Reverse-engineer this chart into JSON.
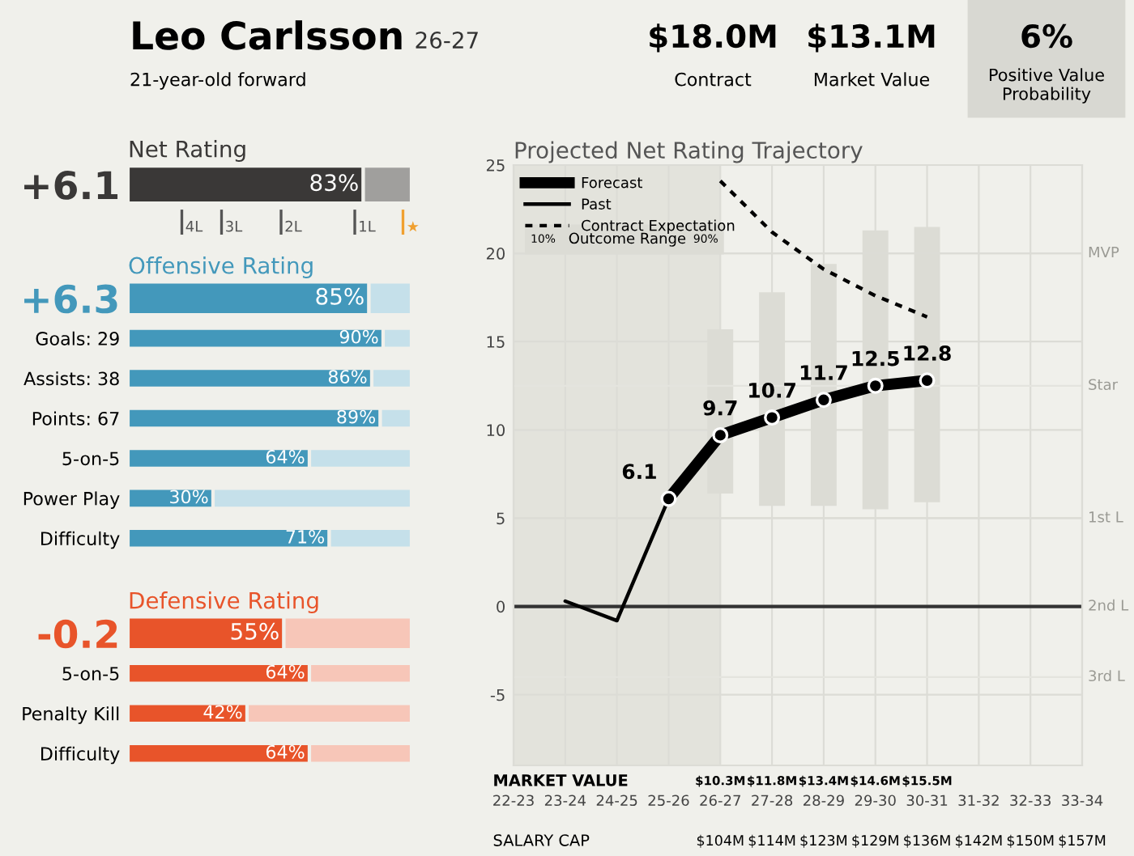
{
  "chart_data": [
    {
      "type": "other",
      "title": "Leo Carlsson",
      "subtitle": "26-27",
      "annotations": [
        "21-year-old forward",
        "$18.0M",
        "Contract",
        "$13.1M",
        "Market Value",
        "6%",
        "Positive Value Probability"
      ]
    },
    {
      "type": "bar",
      "orientation": "horizontal",
      "stacked": true,
      "title": "Net Rating",
      "categories": [
        "+6.1"
      ],
      "ref_lines": [
        {
          "axis": "x",
          "value": 19,
          "label": "4L",
          "color": "#555555"
        },
        {
          "axis": "x",
          "value": 33,
          "label": "3L",
          "color": "#555555"
        },
        {
          "axis": "x",
          "value": 54,
          "label": "2L",
          "color": "#555555"
        },
        {
          "axis": "x",
          "value": 80,
          "label": "1L",
          "color": "#555555"
        },
        {
          "axis": "x",
          "value": 97,
          "label": "★",
          "color": "#f0a030"
        }
      ],
      "series": [
        {
          "color": "#3a3837",
          "values": [
            83
          ],
          "value_labels": [
            "83%"
          ]
        },
        {
          "color": "#a09f9d",
          "values": [
            17
          ]
        }
      ]
    },
    {
      "type": "bar",
      "orientation": "horizontal",
      "stacked": true,
      "title": "Offensive Rating",
      "categories": [
        "+6.3",
        "Goals: 29",
        "Assists: 38",
        "Points: 67",
        "5-on-5",
        "Power Play",
        "Difficulty"
      ],
      "series": [
        {
          "color": "#4398bb",
          "values": [
            85,
            90,
            86,
            89,
            64,
            30,
            71
          ],
          "value_labels": [
            "85%",
            "90%",
            "86%",
            "89%",
            "64%",
            "30%",
            "71%"
          ]
        },
        {
          "color": "#c5e0ea",
          "values": [
            15,
            10,
            14,
            11,
            36,
            70,
            29
          ]
        }
      ]
    },
    {
      "type": "bar",
      "orientation": "horizontal",
      "stacked": true,
      "title": "Defensive Rating",
      "categories": [
        "-0.2",
        "5-on-5",
        "Penalty Kill",
        "Difficulty"
      ],
      "series": [
        {
          "color": "#e8542a",
          "values": [
            55,
            64,
            42,
            64
          ],
          "value_labels": [
            "55%",
            "64%",
            "42%",
            "64%"
          ]
        },
        {
          "color": "#f7c6b8",
          "values": [
            45,
            36,
            58,
            36
          ]
        }
      ]
    },
    {
      "type": "line",
      "title": "Projected Net Rating Trajectory",
      "categories": [
        "22-23",
        "23-24",
        "24-25",
        "25-26",
        "26-27",
        "27-28",
        "28-29",
        "29-30",
        "30-31",
        "31-32",
        "32-33",
        "33-34"
      ],
      "ylim": [
        -9,
        25
      ],
      "yticks": [
        -5,
        0,
        5,
        10,
        15,
        20,
        25
      ],
      "grid": true,
      "legend": "top left",
      "series": [
        {
          "name": "Forecast",
          "type": "line",
          "color": "#000000",
          "marker": "circle",
          "line_style": "solid",
          "values": [
            null,
            null,
            null,
            6.1,
            9.7,
            10.7,
            11.7,
            12.5,
            12.8,
            null,
            null,
            null
          ],
          "value_labels": [
            null,
            null,
            null,
            "6.1",
            "9.7",
            "10.7",
            "11.7",
            "12.5",
            "12.8",
            null,
            null,
            null
          ]
        },
        {
          "name": "Past",
          "type": "line",
          "color": "#000000",
          "line_style": "solid",
          "values": [
            null,
            0.3,
            -0.8,
            6.1,
            null,
            null,
            null,
            null,
            null,
            null,
            null,
            null
          ]
        },
        {
          "name": "Contract Expectation",
          "type": "line",
          "color": "#000000",
          "line_style": "dotted",
          "values": [
            null,
            null,
            null,
            null,
            24.1,
            21.2,
            19.1,
            17.6,
            16.4,
            null,
            null,
            null
          ]
        },
        {
          "name": "Outcome Range",
          "type": "bar",
          "color": "#dcdcd5",
          "base": [
            null,
            null,
            null,
            null,
            6.4,
            5.7,
            5.7,
            5.5,
            5.9,
            null,
            null,
            null
          ],
          "values": [
            null,
            null,
            null,
            null,
            9.3,
            12.1,
            13.7,
            15.8,
            15.6,
            null,
            null,
            null
          ]
        }
      ],
      "ref_lines": [
        {
          "axis": "y",
          "value": 20,
          "label": "MVP",
          "color": "#dcdcd6"
        },
        {
          "axis": "y",
          "value": 12.5,
          "label": "Star",
          "color": "#e4e4de"
        },
        {
          "axis": "y",
          "value": 5,
          "label": "1st L",
          "color": "#dcdcd6"
        },
        {
          "axis": "y",
          "value": 0,
          "label": "2nd L",
          "color": "#333333"
        },
        {
          "axis": "y",
          "value": -4,
          "label": "3rd L",
          "color": "#e4e4de"
        }
      ],
      "annotations": [
        "10%",
        "90%",
        "MARKET VALUE",
        "$10.3M",
        "$11.8M",
        "$13.4M",
        "$14.6M",
        "$15.5M",
        "SALARY CAP",
        "$104M",
        "$114M",
        "$123M",
        "$129M",
        "$136M",
        "$142M",
        "$150M",
        "$157M"
      ]
    }
  ]
}
